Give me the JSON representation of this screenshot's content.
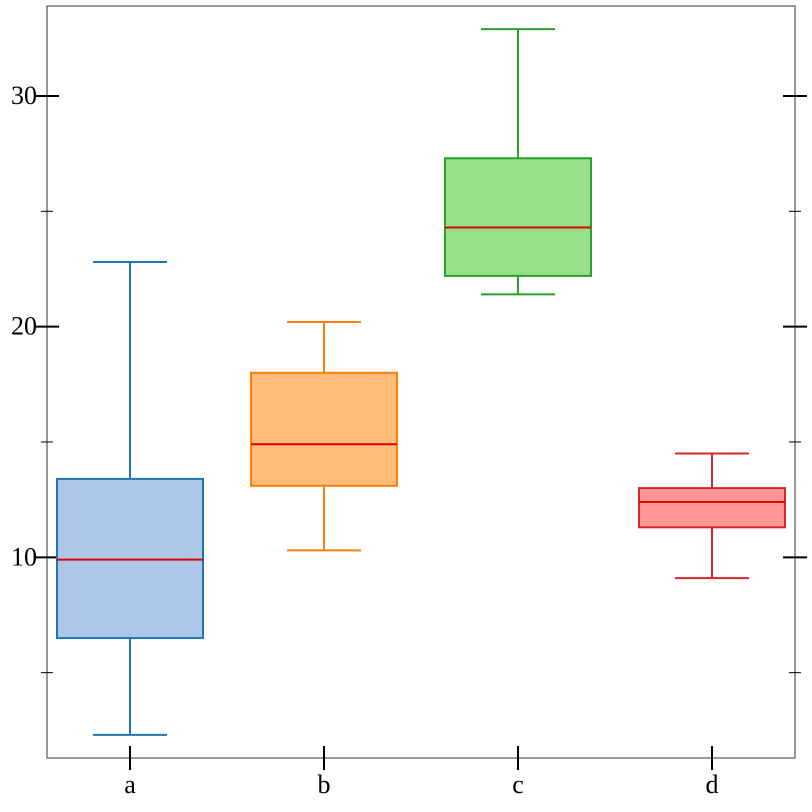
{
  "chart_data": {
    "type": "boxplot",
    "title": "",
    "xlabel": "",
    "ylabel": "",
    "ylim": [
      1.3,
      33.9
    ],
    "y_ticks_major": [
      10,
      20,
      30
    ],
    "y_ticks_minor": [
      5,
      15,
      25
    ],
    "grid": false,
    "categories": [
      "a",
      "b",
      "c",
      "d"
    ],
    "boxes": [
      {
        "category": "a",
        "whisker_low": 2.3,
        "q1": 6.5,
        "median": 9.9,
        "q3": 13.4,
        "whisker_high": 22.8,
        "fill": "#aec7e8",
        "edge": "#1f77b4"
      },
      {
        "category": "b",
        "whisker_low": 10.3,
        "q1": 13.1,
        "median": 14.9,
        "q3": 18.0,
        "whisker_high": 20.2,
        "fill": "#ffbb78",
        "edge": "#ff7f0e"
      },
      {
        "category": "c",
        "whisker_low": 21.4,
        "q1": 22.2,
        "median": 24.3,
        "q3": 27.3,
        "whisker_high": 32.9,
        "fill": "#98df8a",
        "edge": "#2ca02c"
      },
      {
        "category": "d",
        "whisker_low": 9.1,
        "q1": 11.3,
        "median": 12.4,
        "q3": 13.0,
        "whisker_high": 14.5,
        "fill": "#ff9896",
        "edge": "#d62728"
      }
    ],
    "median_color": "#e00000",
    "axis_color": "#000000"
  }
}
